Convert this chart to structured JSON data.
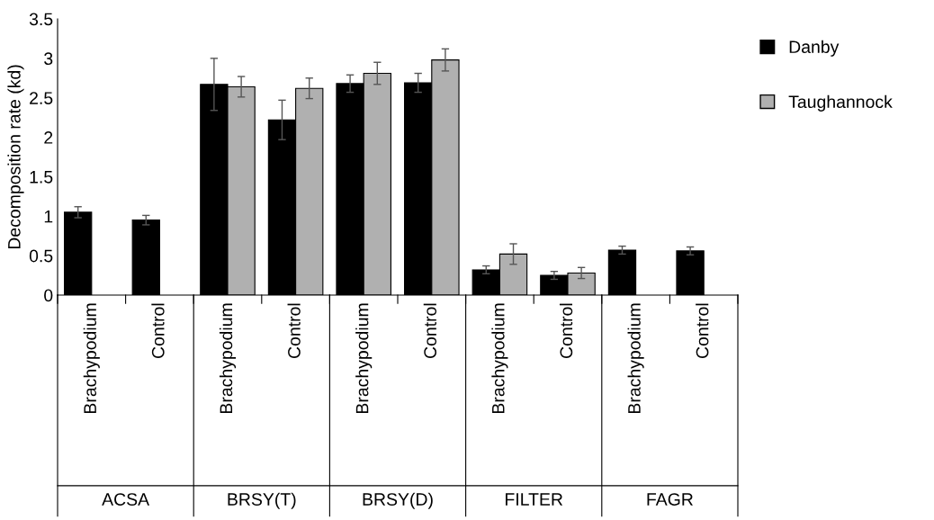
{
  "chart_data": {
    "type": "bar",
    "ylabel": "Decomposition rate (kd)",
    "categories": [
      "Brachypodium",
      "Control",
      "Brachypodium",
      "Control",
      "Brachypodium",
      "Control",
      "Brachypodium",
      "Control",
      "Brachypodium",
      "Control"
    ],
    "annotations": [
      "ACSA",
      "BRSY(T)",
      "BRSY(D)",
      "FILTER",
      "FAGR"
    ],
    "series": [
      {
        "name": "Danby",
        "color": "#000000",
        "values": [
          1.05,
          0.95,
          2.67,
          2.22,
          2.68,
          2.69,
          0.32,
          0.25,
          0.57,
          0.56
        ],
        "errors": [
          0.07,
          0.06,
          0.33,
          0.25,
          0.11,
          0.12,
          0.05,
          0.05,
          0.05,
          0.05
        ]
      },
      {
        "name": "Taughannock",
        "color": "#b0b0b0",
        "values": [
          null,
          null,
          2.64,
          2.62,
          2.81,
          2.98,
          0.52,
          0.28,
          null,
          null
        ],
        "errors": [
          null,
          null,
          0.13,
          0.13,
          0.14,
          0.14,
          0.13,
          0.07,
          null,
          null
        ]
      }
    ],
    "ylim": [
      0,
      3.5
    ],
    "yticks": [
      0,
      0.5,
      1,
      1.5,
      2,
      2.5,
      3,
      3.5
    ],
    "grid": false,
    "legend": "right"
  }
}
